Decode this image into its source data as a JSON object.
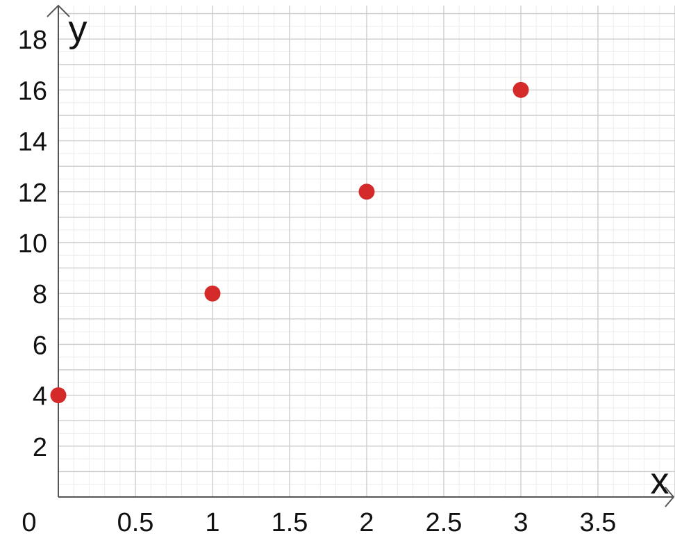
{
  "chart_data": {
    "type": "scatter",
    "xlabel": "x",
    "ylabel": "y",
    "xlim": [
      0,
      4
    ],
    "ylim": [
      0,
      19
    ],
    "x_ticks": [
      0.5,
      1,
      1.5,
      2,
      2.5,
      3,
      3.5
    ],
    "x_tick_labels": [
      "0.5",
      "1",
      "1.5",
      "2",
      "2.5",
      "3",
      "3.5"
    ],
    "y_ticks": [
      2,
      4,
      6,
      8,
      10,
      12,
      14,
      16,
      18
    ],
    "y_tick_labels": [
      "2",
      "4",
      "6",
      "8",
      "10",
      "12",
      "14",
      "16",
      "18"
    ],
    "origin_label": "0",
    "grid": true,
    "points": [
      {
        "x": 0,
        "y": 4
      },
      {
        "x": 1,
        "y": 8
      },
      {
        "x": 2,
        "y": 12
      },
      {
        "x": 3,
        "y": 16
      }
    ],
    "colors": {
      "points": "#d42a2a",
      "axes": "#555555",
      "grid_major": "#cccccc",
      "grid_minor": "#ececec"
    }
  }
}
